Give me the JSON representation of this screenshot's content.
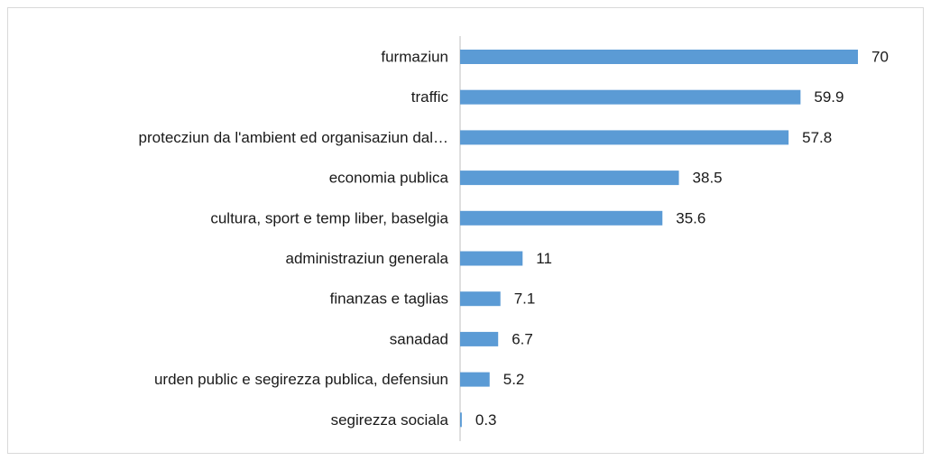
{
  "chart_data": {
    "type": "bar",
    "orientation": "horizontal",
    "color": "#5b9bd5",
    "categories": [
      "furmaziun",
      "traffic",
      "protecziun da l'ambient ed organisaziun dal…",
      "economia publica",
      "cultura, sport e temp liber, baselgia",
      "administraziun generala",
      "finanzas e taglias",
      "sanadad",
      "urden public e segirezza publica, defensiun",
      "segirezza sociala"
    ],
    "values": [
      70,
      59.9,
      57.8,
      38.5,
      35.6,
      11,
      7.1,
      6.7,
      5.2,
      0.3
    ]
  }
}
